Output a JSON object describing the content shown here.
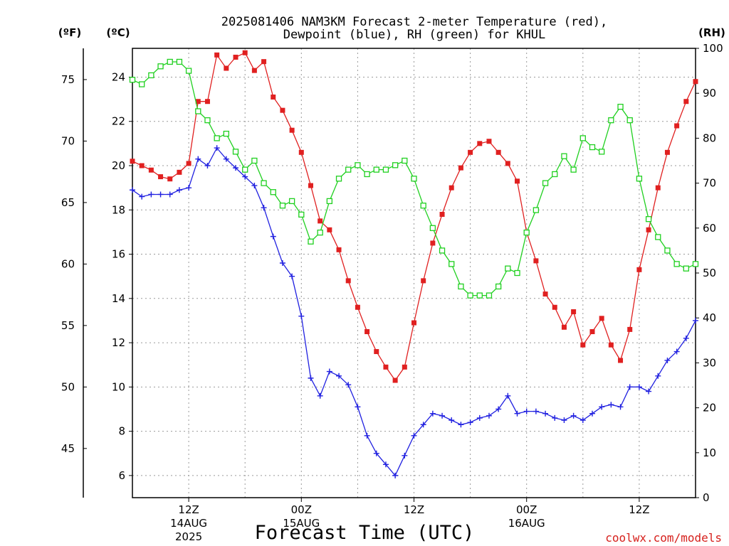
{
  "chart_data": {
    "type": "line",
    "title_line1": "2025081406 NAM3KM Forecast 2-meter Temperature (red),",
    "title_line2": "Dewpoint (blue), RH (green) for KHUL",
    "xlabel": "Forecast Time (UTC)",
    "credit": "coolwx.com/models",
    "left_outer_unit": "(ºF)",
    "left_inner_unit": "(ºC)",
    "right_unit": "(RH)",
    "celsius_ticks": [
      6,
      8,
      10,
      12,
      14,
      16,
      18,
      20,
      22,
      24
    ],
    "fahrenheit_ticks": [
      45,
      50,
      55,
      60,
      65,
      70,
      75
    ],
    "rh_ticks": [
      0,
      10,
      20,
      30,
      40,
      50,
      60,
      70,
      80,
      90,
      100
    ],
    "ylim_celsius": [
      5,
      25.3
    ],
    "ylim_rh": [
      0,
      100
    ],
    "x_hours_range": [
      6,
      66
    ],
    "x_ticks": [
      {
        "hour": 12,
        "line1": "12Z",
        "line2": "14AUG",
        "line3": "2025"
      },
      {
        "hour": 24,
        "line1": "00Z",
        "line2": "15AUG",
        "line3": ""
      },
      {
        "hour": 36,
        "line1": "12Z",
        "line2": "",
        "line3": ""
      },
      {
        "hour": 48,
        "line1": "00Z",
        "line2": "16AUG",
        "line3": ""
      },
      {
        "hour": 60,
        "line1": "12Z",
        "line2": "",
        "line3": ""
      }
    ],
    "forecast_hours": [
      6,
      7,
      8,
      9,
      10,
      11,
      12,
      13,
      14,
      15,
      16,
      17,
      18,
      19,
      20,
      21,
      22,
      23,
      24,
      25,
      26,
      27,
      28,
      29,
      30,
      31,
      32,
      33,
      34,
      35,
      36,
      37,
      38,
      39,
      40,
      41,
      42,
      43,
      44,
      45,
      46,
      47,
      48,
      49,
      50,
      51,
      52,
      53,
      54,
      55,
      56,
      57,
      58,
      59,
      60,
      61,
      62,
      63,
      64,
      65,
      66
    ],
    "series": [
      {
        "name": "Temperature (red)",
        "unit": "C",
        "color": "#e02020",
        "marker": "filled-square",
        "values": [
          20.2,
          20.0,
          19.8,
          19.5,
          19.4,
          19.7,
          20.1,
          22.9,
          22.9,
          25.0,
          24.4,
          24.9,
          25.1,
          24.3,
          24.7,
          23.1,
          22.5,
          21.6,
          20.6,
          19.1,
          17.5,
          17.1,
          16.2,
          14.8,
          13.6,
          12.5,
          11.6,
          10.9,
          10.3,
          10.9,
          12.9,
          14.8,
          16.5,
          17.8,
          19.0,
          19.9,
          20.6,
          21.0,
          21.1,
          20.6,
          20.1,
          19.3,
          17.0,
          15.7,
          14.2,
          13.6,
          12.7,
          13.4,
          11.9,
          12.5,
          13.1,
          11.9,
          11.2,
          12.6,
          15.3,
          17.1,
          19.0,
          20.6,
          21.8,
          22.9,
          23.8
        ]
      },
      {
        "name": "Dewpoint (blue)",
        "unit": "C",
        "color": "#2020e0",
        "marker": "plus",
        "values": [
          18.9,
          18.6,
          18.7,
          18.7,
          18.7,
          18.9,
          19.0,
          20.3,
          20.0,
          20.8,
          20.3,
          19.9,
          19.5,
          19.1,
          18.1,
          16.8,
          15.6,
          15.0,
          13.2,
          10.4,
          9.6,
          10.7,
          10.5,
          10.1,
          9.1,
          7.8,
          7.0,
          6.5,
          6.0,
          6.9,
          7.8,
          8.3,
          8.8,
          8.7,
          8.5,
          8.3,
          8.4,
          8.6,
          8.7,
          9.0,
          9.6,
          8.8,
          8.9,
          8.9,
          8.8,
          8.6,
          8.5,
          8.7,
          8.5,
          8.8,
          9.1,
          9.2,
          9.1,
          10.0,
          10.0,
          9.8,
          10.5,
          11.2,
          11.6,
          12.2,
          13.0
        ]
      },
      {
        "name": "RH (green)",
        "unit": "%",
        "color": "#20d020",
        "marker": "open-square",
        "values": [
          93,
          92,
          94,
          96,
          97,
          97,
          95,
          86,
          84,
          80,
          81,
          77,
          73,
          75,
          70,
          68,
          65,
          66,
          63,
          57,
          59,
          66,
          71,
          73,
          74,
          72,
          73,
          73,
          74,
          75,
          71,
          65,
          60,
          55,
          52,
          47,
          45,
          45,
          45,
          47,
          51,
          50,
          59,
          64,
          70,
          72,
          76,
          73,
          80,
          78,
          77,
          84,
          87,
          84,
          71,
          62,
          58,
          55,
          52,
          51,
          52
        ]
      }
    ]
  }
}
